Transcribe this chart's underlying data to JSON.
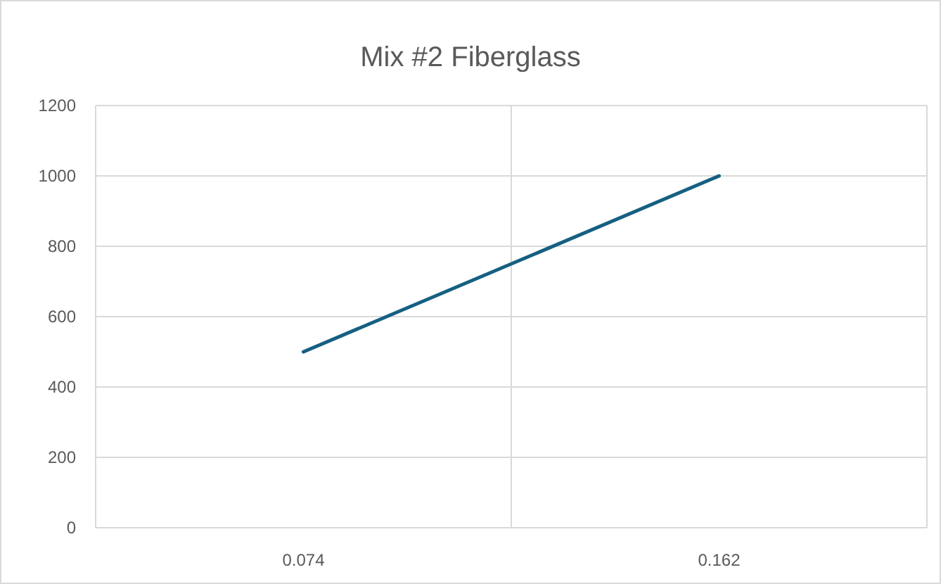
{
  "chart_data": {
    "type": "line",
    "title": "Mix #2 Fiberglass",
    "categories": [
      "0.074",
      "0.162"
    ],
    "series": [
      {
        "color": "#156082",
        "values": [
          500,
          1000
        ]
      }
    ],
    "ylim": [
      0,
      1200
    ],
    "yticks": [
      0,
      200,
      400,
      600,
      800,
      1000,
      1200
    ],
    "grid": true,
    "marker": "none",
    "line_style": "solid"
  }
}
